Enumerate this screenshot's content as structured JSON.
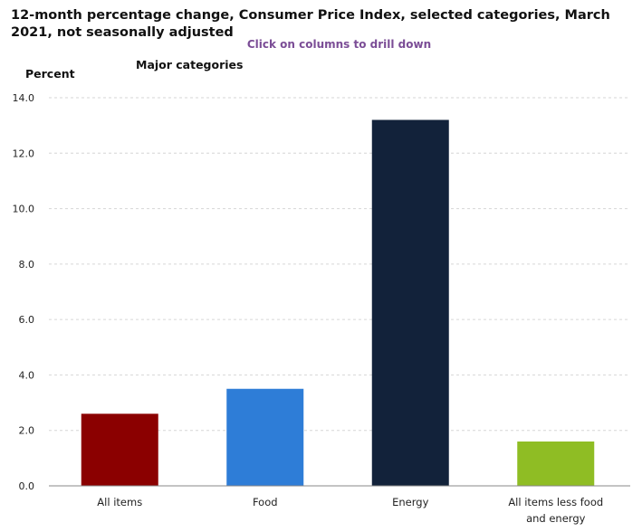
{
  "title": "12-month percentage change, Consumer Price Index, selected categories, March 2021, not seasonally adjusted",
  "subtitle": "Click on columns to drill down",
  "ylabel": "Percent",
  "group_label": "Major categories",
  "chart_data": {
    "type": "bar",
    "title": "12-month percentage change, Consumer Price Index, selected categories, March 2021, not seasonally adjusted",
    "ylabel": "Percent",
    "xlabel": "",
    "ylim": [
      0,
      14
    ],
    "yticks": [
      "0.0",
      "2.0",
      "4.0",
      "6.0",
      "8.0",
      "10.0",
      "12.0",
      "14.0"
    ],
    "grid": true,
    "categories": [
      "All items",
      "Food",
      "Energy",
      "All items less food and energy"
    ],
    "values": [
      2.6,
      3.5,
      13.2,
      1.6
    ],
    "colors": [
      "#8b0000",
      "#2e7dd7",
      "#12223a",
      "#8fbd24"
    ]
  }
}
